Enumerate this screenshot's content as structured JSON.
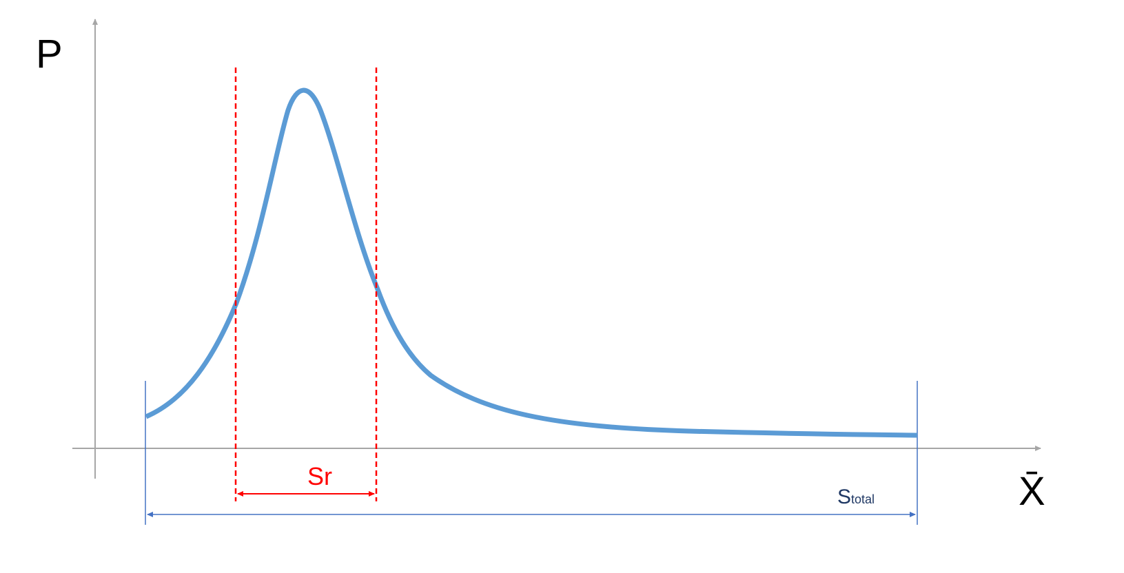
{
  "y_axis_label": "P",
  "x_axis_label": "X̄",
  "sr_label": "Sr",
  "stotal_label": {
    "base": "S",
    "subscript": "total"
  },
  "colors": {
    "axes": "#a6a6a6",
    "curve": "#5b9bd5",
    "sr": "#ff0000",
    "stotal": "#4472c4",
    "stotal_text": "#1f3864"
  }
}
